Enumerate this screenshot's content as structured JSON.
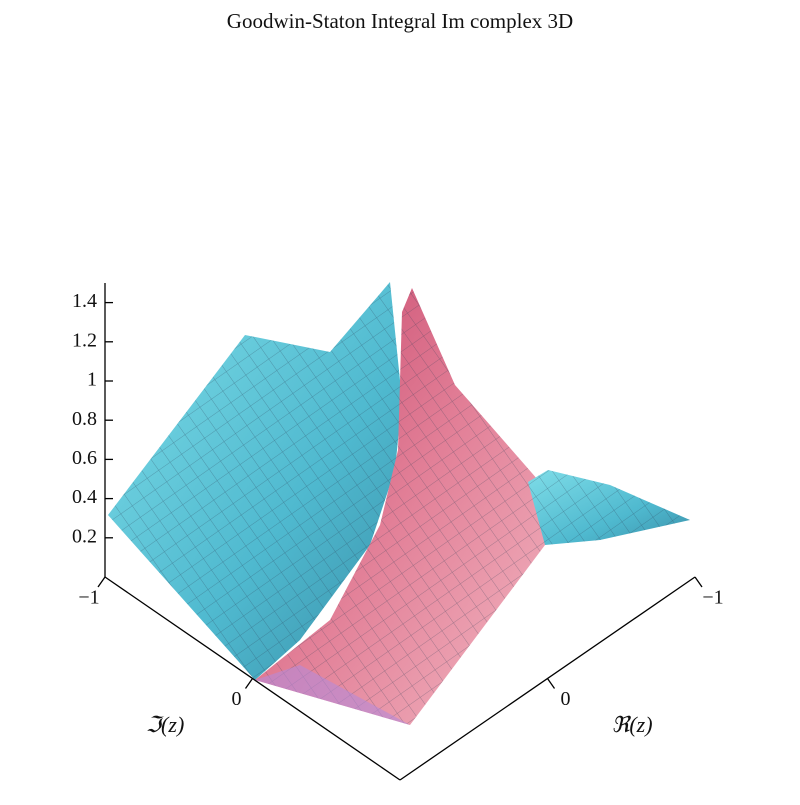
{
  "chart_data": {
    "type": "surface3d",
    "title": "Goodwin-Staton Integral  Im complex 3D",
    "xlabel": "ℜ(z)",
    "ylabel": "ℑ(z)",
    "xlim": [
      -1,
      1
    ],
    "xticks": [
      {
        "value": -1,
        "label": "−1"
      },
      0
    ],
    "ylim": [
      -1,
      1
    ],
    "yticks": [
      {
        "value": -1,
        "label": "−1"
      },
      0
    ],
    "zlim": [
      0,
      1.5
    ],
    "zticks": [
      0.2,
      0.4,
      0.6,
      0.8,
      1,
      1.2,
      1.4
    ]
  }
}
